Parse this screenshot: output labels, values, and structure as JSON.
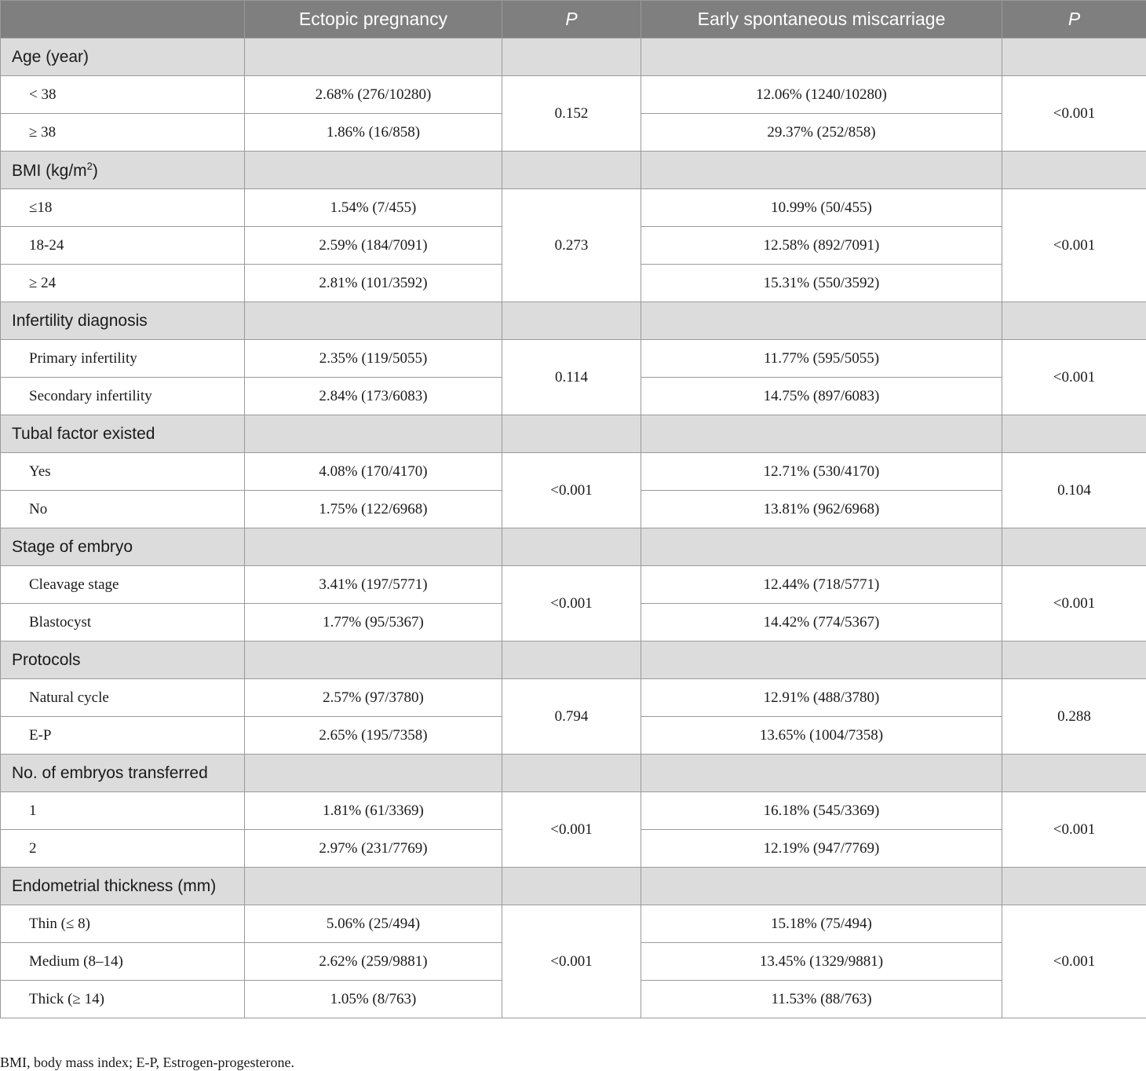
{
  "header": {
    "col0": "",
    "col1": "Ectopic pregnancy",
    "col2": "P",
    "col3": "Early spontaneous miscarriage",
    "col4": "P"
  },
  "groups": [
    {
      "label": "Age (year)",
      "p1": "0.152",
      "p2": "<0.001",
      "rows": [
        {
          "name": "< 38",
          "ectopic": "2.68% (276/10280)",
          "miscarriage": "12.06% (1240/10280)"
        },
        {
          "name": "≥ 38",
          "ectopic": "1.86% (16/858)",
          "miscarriage": "29.37% (252/858)"
        }
      ]
    },
    {
      "label": "BMI (kg/m",
      "label_sup": "2",
      "label_end": ")",
      "p1": "0.273",
      "p2": "<0.001",
      "rows": [
        {
          "name": "≤18",
          "ectopic": "1.54% (7/455)",
          "miscarriage": "10.99% (50/455)"
        },
        {
          "name": "18-24",
          "ectopic": "2.59% (184/7091)",
          "miscarriage": "12.58% (892/7091)"
        },
        {
          "name": "≥ 24",
          "ectopic": "2.81% (101/3592)",
          "miscarriage": "15.31% (550/3592)"
        }
      ]
    },
    {
      "label": "Infertility diagnosis",
      "p1": "0.114",
      "p2": "<0.001",
      "rows": [
        {
          "name": "Primary infertility",
          "ectopic": "2.35% (119/5055)",
          "miscarriage": "11.77% (595/5055)"
        },
        {
          "name": "Secondary infertility",
          "ectopic": "2.84% (173/6083)",
          "miscarriage": "14.75% (897/6083)"
        }
      ]
    },
    {
      "label": "Tubal factor existed",
      "p1": "<0.001",
      "p2": "0.104",
      "rows": [
        {
          "name": "Yes",
          "ectopic": "4.08% (170/4170)",
          "miscarriage": "12.71% (530/4170)"
        },
        {
          "name": "No",
          "ectopic": "1.75% (122/6968)",
          "miscarriage": "13.81% (962/6968)"
        }
      ]
    },
    {
      "label": "Stage of embryo",
      "p1": "<0.001",
      "p2": "<0.001",
      "rows": [
        {
          "name": "Cleavage stage",
          "ectopic": "3.41% (197/5771)",
          "miscarriage": "12.44% (718/5771)"
        },
        {
          "name": "Blastocyst",
          "ectopic": "1.77% (95/5367)",
          "miscarriage": "14.42% (774/5367)"
        }
      ]
    },
    {
      "label": "Protocols",
      "p1": "0.794",
      "p2": "0.288",
      "rows": [
        {
          "name": "Natural cycle",
          "ectopic": "2.57% (97/3780)",
          "miscarriage": "12.91% (488/3780)"
        },
        {
          "name": "E-P",
          "ectopic": "2.65% (195/7358)",
          "miscarriage": "13.65% (1004/7358)"
        }
      ]
    },
    {
      "label": "No. of embryos transferred",
      "p1": "<0.001",
      "p2": "<0.001",
      "rows": [
        {
          "name": "1",
          "ectopic": "1.81% (61/3369)",
          "miscarriage": "16.18% (545/3369)"
        },
        {
          "name": "2",
          "ectopic": "2.97% (231/7769)",
          "miscarriage": "12.19% (947/7769)"
        }
      ]
    },
    {
      "label": "Endometrial thickness (mm)",
      "p1": "<0.001",
      "p2": "<0.001",
      "rows": [
        {
          "name": "Thin (≤ 8)",
          "ectopic": "5.06% (25/494)",
          "miscarriage": "15.18% (75/494)"
        },
        {
          "name": "Medium (8–14)",
          "ectopic": "2.62% (259/9881)",
          "miscarriage": "13.45% (1329/9881)"
        },
        {
          "name": "Thick (≥ 14)",
          "ectopic": "1.05% (8/763)",
          "miscarriage": "11.53% (88/763)"
        }
      ]
    }
  ],
  "footnote": "BMI, body mass index; E-P, Estrogen-progesterone."
}
